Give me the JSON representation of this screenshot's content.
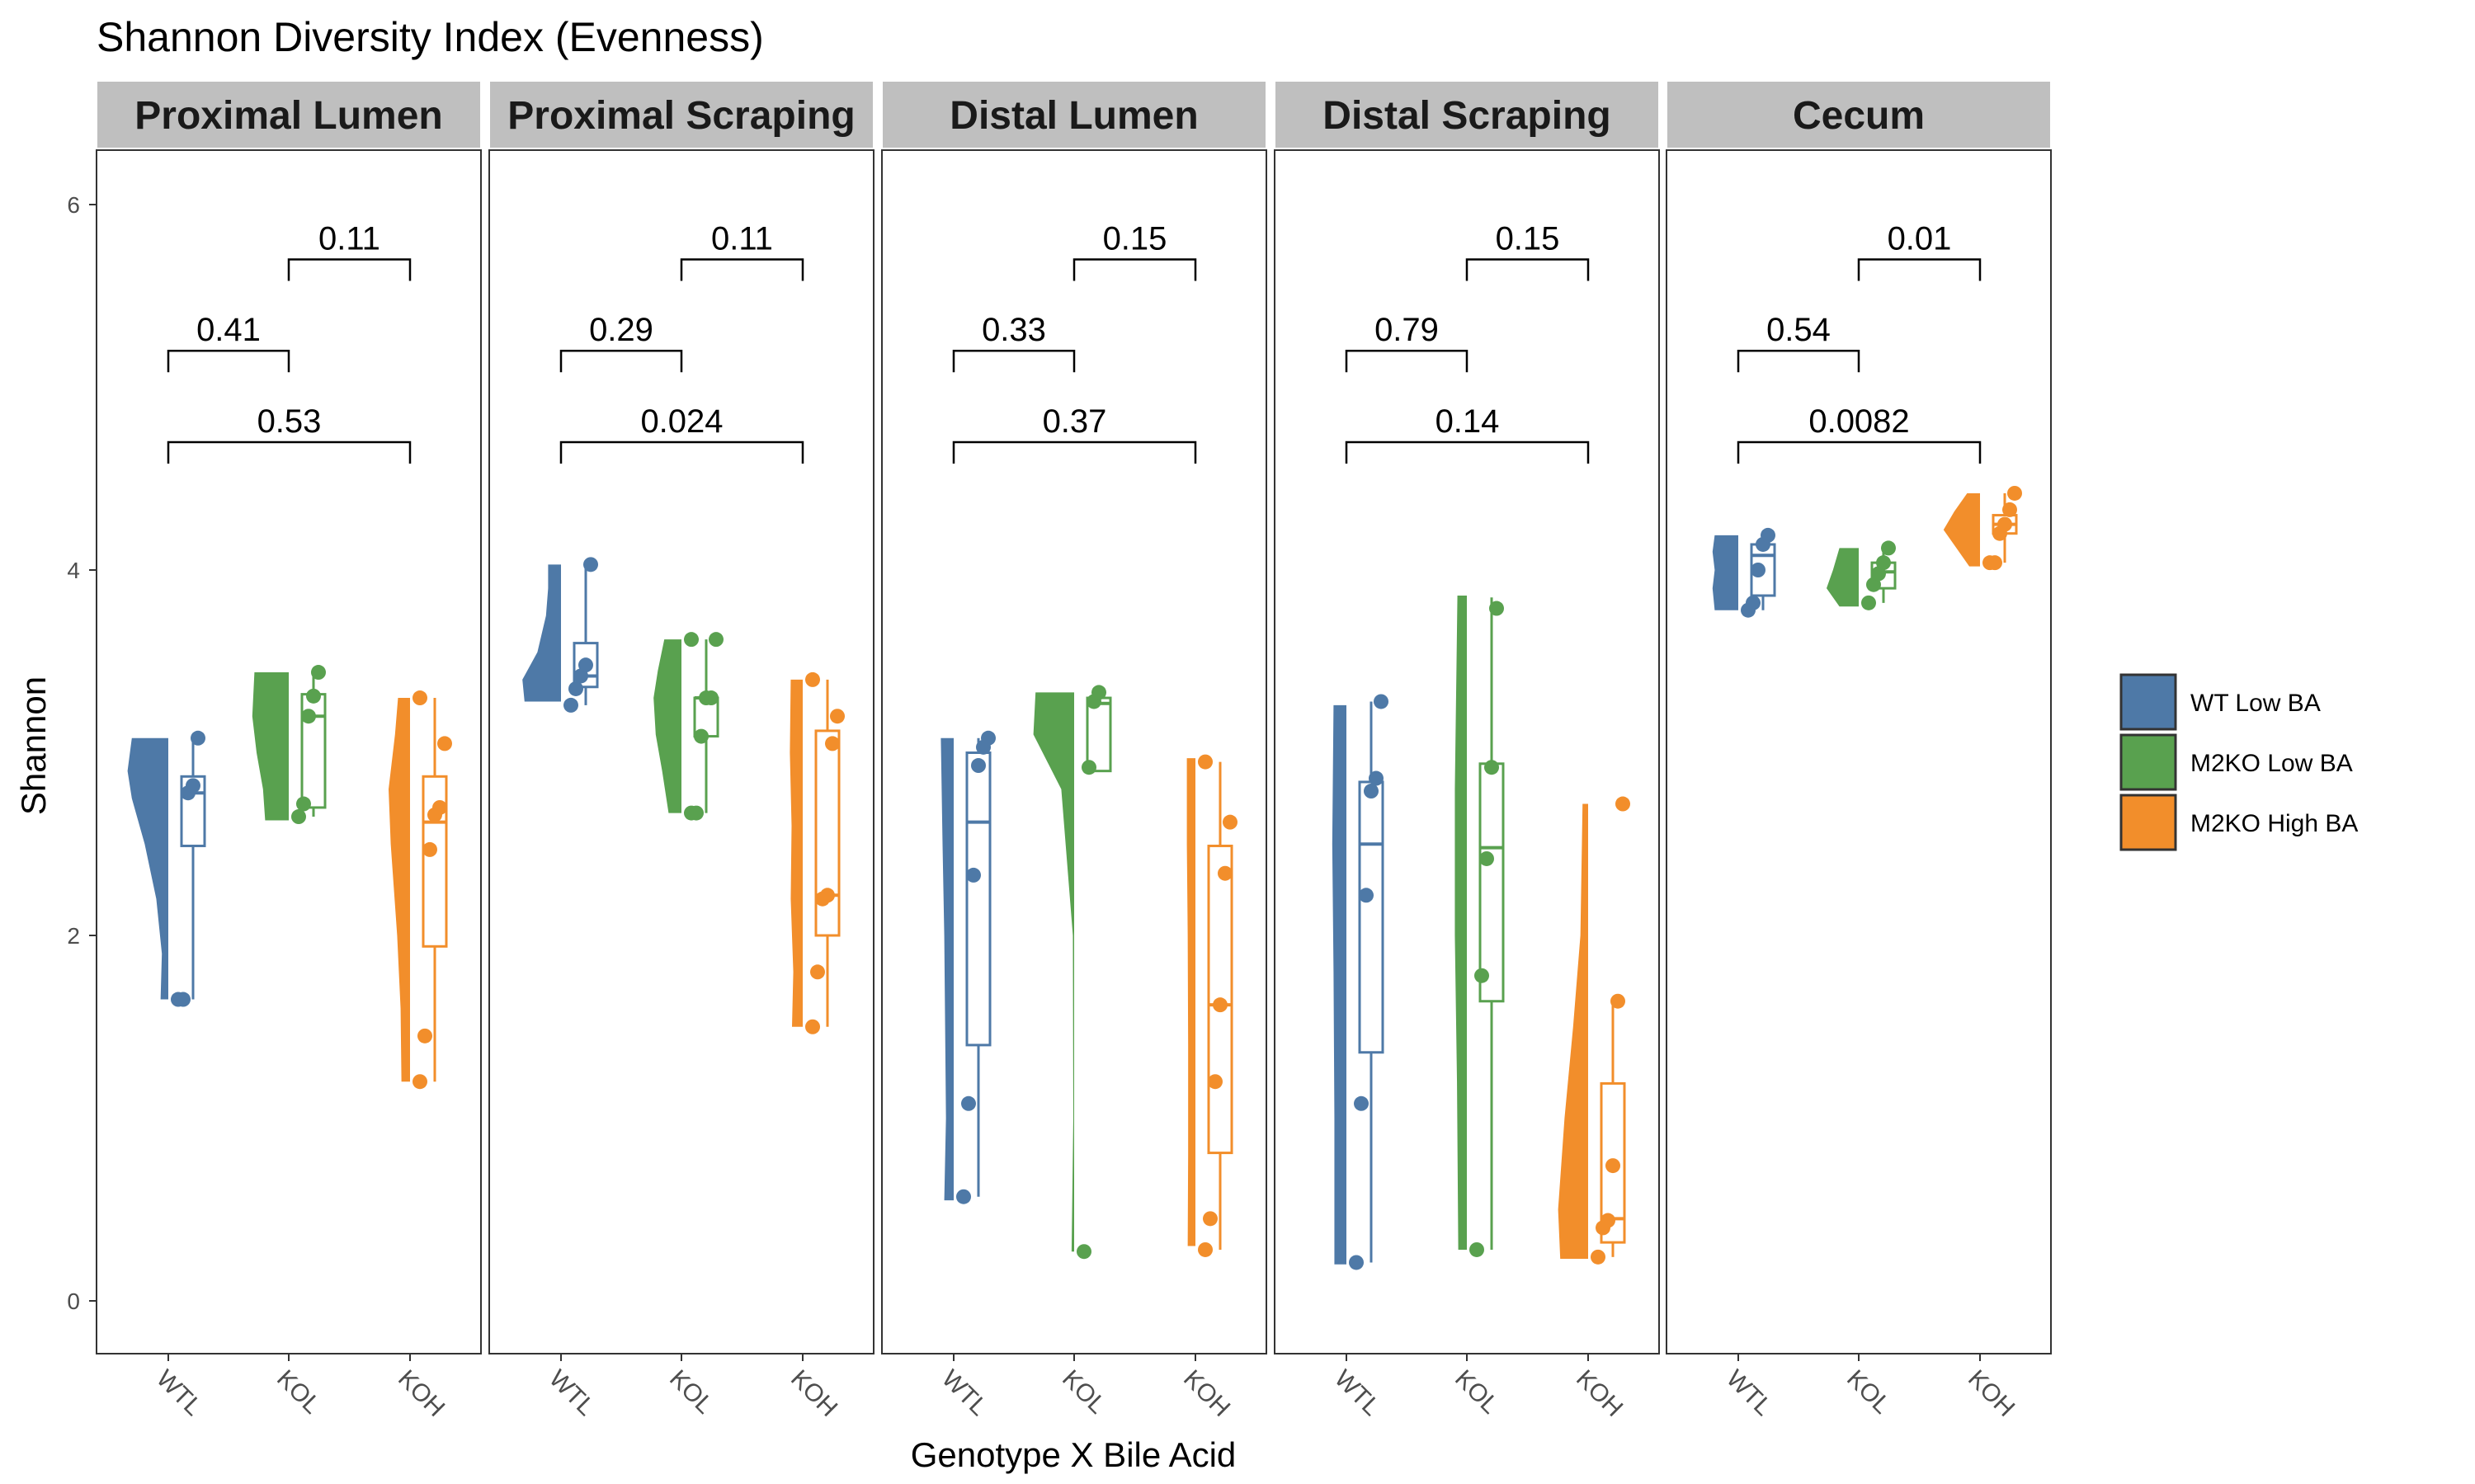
{
  "chart_data": {
    "type": "raincloud",
    "title": "Shannon Diversity Index (Evenness)",
    "xlabel": "Genotype X Bile Acid",
    "ylabel": "Shannon",
    "ylim": [
      -0.3,
      6.2
    ],
    "yticks": [
      0,
      2,
      4,
      6
    ],
    "groups": [
      "WTL",
      "KOL",
      "KOH"
    ],
    "legend": {
      "position": "right",
      "entries": [
        {
          "key": "WTL",
          "label": "WT Low BA",
          "color": "#4e79a7"
        },
        {
          "key": "KOL",
          "label": "M2KO Low BA",
          "color": "#59a14f"
        },
        {
          "key": "KOH",
          "label": "M2KO High BA",
          "color": "#f28e2b"
        }
      ]
    },
    "colors": {
      "WTL": "#4e79a7",
      "KOL": "#59a14f",
      "KOH": "#f28e2b"
    },
    "panels": [
      {
        "name": "Proximal Lumen",
        "comparisons": [
          {
            "from": "KOL",
            "to": "KOH",
            "y": 5.7,
            "label": "0.11"
          },
          {
            "from": "WTL",
            "to": "KOL",
            "y": 5.2,
            "label": "0.41"
          },
          {
            "from": "WTL",
            "to": "KOH",
            "y": 4.7,
            "label": "0.53"
          }
        ],
        "series": [
          {
            "group": "WTL",
            "points": [
              1.65,
              1.65,
              2.78,
              2.82,
              3.08
            ],
            "box": {
              "min": 1.65,
              "q1": 2.49,
              "median": 2.78,
              "q3": 2.87,
              "max": 3.08
            },
            "density": [
              [
                1.65,
                0.18
              ],
              [
                1.9,
                0.15
              ],
              [
                2.2,
                0.28
              ],
              [
                2.5,
                0.55
              ],
              [
                2.75,
                0.85
              ],
              [
                2.9,
                0.95
              ],
              [
                3.08,
                0.85
              ]
            ]
          },
          {
            "group": "KOL",
            "points": [
              2.65,
              2.72,
              3.2,
              3.31,
              3.44
            ],
            "box": {
              "min": 2.65,
              "q1": 2.7,
              "median": 3.2,
              "q3": 3.32,
              "max": 3.44
            },
            "density": [
              [
                2.63,
                0.55
              ],
              [
                2.8,
                0.6
              ],
              [
                3.0,
                0.75
              ],
              [
                3.2,
                0.85
              ],
              [
                3.44,
                0.8
              ]
            ]
          },
          {
            "group": "KOH",
            "points": [
              1.2,
              1.45,
              2.47,
              2.66,
              2.7,
              3.05,
              3.3
            ],
            "box": {
              "min": 1.2,
              "q1": 1.94,
              "median": 2.62,
              "q3": 2.87,
              "max": 3.3
            },
            "density": [
              [
                1.2,
                0.2
              ],
              [
                1.6,
                0.22
              ],
              [
                2.0,
                0.3
              ],
              [
                2.5,
                0.45
              ],
              [
                2.8,
                0.5
              ],
              [
                3.1,
                0.35
              ],
              [
                3.3,
                0.28
              ]
            ]
          }
        ]
      },
      {
        "name": "Proximal Scraping",
        "comparisons": [
          {
            "from": "KOL",
            "to": "KOH",
            "y": 5.7,
            "label": "0.11"
          },
          {
            "from": "WTL",
            "to": "KOL",
            "y": 5.2,
            "label": "0.29"
          },
          {
            "from": "WTL",
            "to": "KOH",
            "y": 4.7,
            "label": "0.024"
          }
        ],
        "series": [
          {
            "group": "WTL",
            "points": [
              3.26,
              3.35,
              3.42,
              3.48,
              4.03
            ],
            "box": {
              "min": 3.26,
              "q1": 3.36,
              "median": 3.42,
              "q3": 3.6,
              "max": 4.03
            },
            "density": [
              [
                3.28,
                0.85
              ],
              [
                3.4,
                0.9
              ],
              [
                3.55,
                0.55
              ],
              [
                3.75,
                0.35
              ],
              [
                3.9,
                0.3
              ],
              [
                4.03,
                0.3
              ]
            ]
          },
          {
            "group": "KOL",
            "points": [
              2.67,
              2.67,
              3.09,
              3.3,
              3.3,
              3.62,
              3.62
            ],
            "box": {
              "min": 2.67,
              "q1": 3.09,
              "median": 3.3,
              "q3": 3.3,
              "max": 3.62
            },
            "density": [
              [
                2.67,
                0.3
              ],
              [
                2.9,
                0.45
              ],
              [
                3.1,
                0.6
              ],
              [
                3.3,
                0.65
              ],
              [
                3.45,
                0.55
              ],
              [
                3.62,
                0.4
              ]
            ]
          },
          {
            "group": "KOH",
            "points": [
              1.5,
              1.8,
              2.2,
              2.22,
              3.05,
              3.2,
              3.4
            ],
            "box": {
              "min": 1.5,
              "q1": 2.0,
              "median": 2.22,
              "q3": 3.12,
              "max": 3.4
            },
            "density": [
              [
                1.5,
                0.25
              ],
              [
                1.8,
                0.22
              ],
              [
                2.2,
                0.28
              ],
              [
                2.6,
                0.26
              ],
              [
                3.0,
                0.3
              ],
              [
                3.4,
                0.28
              ]
            ]
          }
        ]
      },
      {
        "name": "Distal Lumen",
        "comparisons": [
          {
            "from": "KOL",
            "to": "KOH",
            "y": 5.7,
            "label": "0.15"
          },
          {
            "from": "WTL",
            "to": "KOL",
            "y": 5.2,
            "label": "0.33"
          },
          {
            "from": "WTL",
            "to": "KOH",
            "y": 4.7,
            "label": "0.37"
          }
        ],
        "series": [
          {
            "group": "WTL",
            "points": [
              0.57,
              1.08,
              2.33,
              2.93,
              3.03,
              3.08
            ],
            "box": {
              "min": 0.57,
              "q1": 1.4,
              "median": 2.62,
              "q3": 3.0,
              "max": 3.08
            },
            "density": [
              [
                0.55,
                0.22
              ],
              [
                1.0,
                0.18
              ],
              [
                1.5,
                0.2
              ],
              [
                2.0,
                0.22
              ],
              [
                2.5,
                0.26
              ],
              [
                3.08,
                0.3
              ]
            ]
          },
          {
            "group": "KOL",
            "points": [
              0.27,
              2.92,
              3.28,
              3.33
            ],
            "box": {
              "min": 2.9,
              "q1": 2.9,
              "median": 3.27,
              "q3": 3.3,
              "max": 3.33
            },
            "density": [
              [
                0.27,
                0.06
              ],
              [
                1.0,
                0.02
              ],
              [
                2.0,
                0.03
              ],
              [
                2.8,
                0.3
              ],
              [
                3.1,
                0.95
              ],
              [
                3.33,
                0.9
              ]
            ]
          },
          {
            "group": "KOH",
            "points": [
              0.28,
              0.45,
              1.2,
              1.62,
              2.34,
              2.62,
              2.95
            ],
            "box": {
              "min": 0.28,
              "q1": 0.81,
              "median": 1.62,
              "q3": 2.49,
              "max": 2.95
            },
            "density": [
              [
                0.3,
                0.18
              ],
              [
                0.8,
                0.17
              ],
              [
                1.4,
                0.17
              ],
              [
                2.0,
                0.18
              ],
              [
                2.5,
                0.2
              ],
              [
                2.97,
                0.2
              ]
            ]
          }
        ]
      },
      {
        "name": "Distal Scraping",
        "comparisons": [
          {
            "from": "KOL",
            "to": "KOH",
            "y": 5.7,
            "label": "0.15"
          },
          {
            "from": "WTL",
            "to": "KOL",
            "y": 5.2,
            "label": "0.79"
          },
          {
            "from": "WTL",
            "to": "KOH",
            "y": 4.7,
            "label": "0.14"
          }
        ],
        "series": [
          {
            "group": "WTL",
            "points": [
              0.21,
              1.08,
              2.22,
              2.79,
              2.86,
              3.28
            ],
            "box": {
              "min": 0.21,
              "q1": 1.36,
              "median": 2.5,
              "q3": 2.84,
              "max": 3.28
            },
            "density": [
              [
                0.2,
                0.28
              ],
              [
                1.0,
                0.28
              ],
              [
                1.8,
                0.3
              ],
              [
                2.5,
                0.33
              ],
              [
                3.26,
                0.3
              ]
            ]
          },
          {
            "group": "KOL",
            "points": [
              0.28,
              1.78,
              2.42,
              2.92,
              3.79
            ],
            "box": {
              "min": 0.28,
              "q1": 1.64,
              "median": 2.48,
              "q3": 2.94,
              "max": 3.85
            },
            "density": [
              [
                0.28,
                0.2
              ],
              [
                1.2,
                0.23
              ],
              [
                2.0,
                0.28
              ],
              [
                2.8,
                0.28
              ],
              [
                3.5,
                0.24
              ],
              [
                3.86,
                0.22
              ]
            ]
          },
          {
            "group": "KOH",
            "points": [
              0.24,
              0.4,
              0.44,
              0.74,
              1.64,
              2.72
            ],
            "box": {
              "min": 0.24,
              "q1": 0.32,
              "median": 0.45,
              "q3": 1.19,
              "max": 1.64
            },
            "density": [
              [
                0.23,
                0.65
              ],
              [
                0.5,
                0.7
              ],
              [
                1.0,
                0.55
              ],
              [
                1.5,
                0.35
              ],
              [
                2.0,
                0.18
              ],
              [
                2.72,
                0.13
              ]
            ]
          }
        ]
      },
      {
        "name": "Cecum",
        "comparisons": [
          {
            "from": "KOL",
            "to": "KOH",
            "y": 5.7,
            "label": "0.01"
          },
          {
            "from": "WTL",
            "to": "KOL",
            "y": 5.2,
            "label": "0.54"
          },
          {
            "from": "WTL",
            "to": "KOH",
            "y": 4.7,
            "label": "0.0082"
          }
        ],
        "series": [
          {
            "group": "WTL",
            "points": [
              3.78,
              3.82,
              4.0,
              4.14,
              4.19
            ],
            "box": {
              "min": 3.78,
              "q1": 3.86,
              "median": 4.08,
              "q3": 4.14,
              "max": 4.19
            },
            "density": [
              [
                3.78,
                0.55
              ],
              [
                3.9,
                0.6
              ],
              [
                4.0,
                0.55
              ],
              [
                4.1,
                0.6
              ],
              [
                4.19,
                0.55
              ]
            ]
          },
          {
            "group": "KOL",
            "points": [
              3.82,
              3.92,
              3.98,
              4.04,
              4.12
            ],
            "box": {
              "min": 3.82,
              "q1": 3.9,
              "median": 3.99,
              "q3": 4.04,
              "max": 4.12
            },
            "density": [
              [
                3.8,
                0.45
              ],
              [
                3.9,
                0.75
              ],
              [
                4.0,
                0.6
              ],
              [
                4.12,
                0.45
              ]
            ]
          },
          {
            "group": "KOH",
            "points": [
              4.04,
              4.04,
              4.2,
              4.25,
              4.33,
              4.42
            ],
            "box": {
              "min": 4.04,
              "q1": 4.2,
              "median": 4.25,
              "q3": 4.3,
              "max": 4.42
            },
            "density": [
              [
                4.02,
                0.25
              ],
              [
                4.12,
                0.55
              ],
              [
                4.22,
                0.85
              ],
              [
                4.32,
                0.6
              ],
              [
                4.42,
                0.3
              ]
            ]
          }
        ]
      }
    ]
  }
}
